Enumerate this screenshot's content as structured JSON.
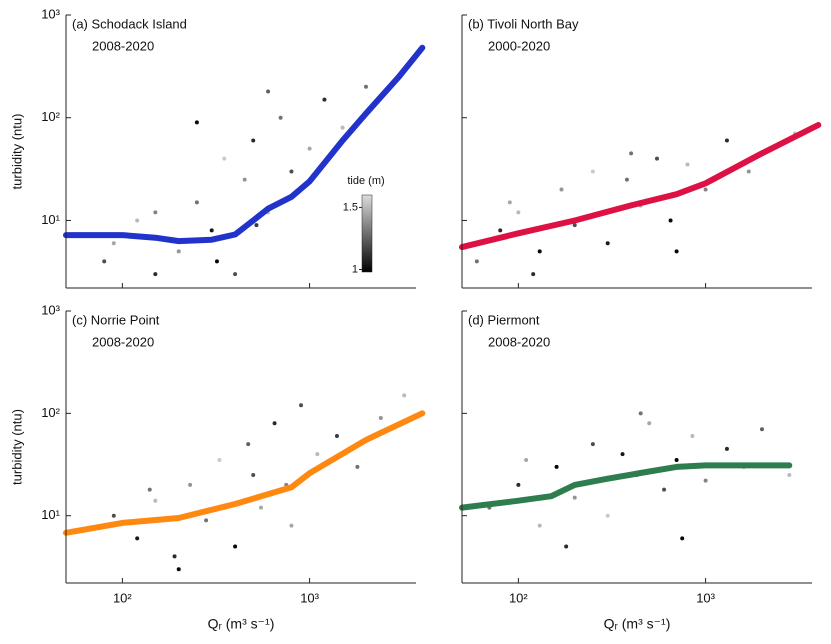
{
  "chart_data": [
    {
      "type": "scatter",
      "title": "(a) Schodack Island",
      "subtitle": "2008-2020",
      "ylabel": "turbidity (ntu)",
      "xlim": [
        50,
        3700
      ],
      "ylim": [
        2.2,
        1000
      ],
      "log_x": true,
      "log_y": true,
      "xticks": [
        100,
        1000
      ],
      "yticks": [
        {
          "value": 10,
          "label": "10¹"
        },
        {
          "value": 100,
          "label": "10²"
        },
        {
          "value": 1000,
          "label": "10³"
        }
      ],
      "points": {
        "x": [
          80,
          120,
          150,
          200,
          250,
          300,
          350,
          400,
          450,
          500,
          600,
          700,
          800,
          1000,
          1200,
          1500,
          2000,
          250,
          150,
          600,
          90,
          320,
          520,
          900
        ],
        "y": [
          4,
          10,
          3,
          5,
          15,
          8,
          40,
          3,
          25,
          60,
          12,
          100,
          30,
          50,
          150,
          80,
          200,
          90,
          12,
          180,
          6,
          4,
          9,
          20
        ],
        "tide": [
          1.2,
          1.5,
          1.1,
          1.4,
          1.3,
          1.05,
          1.55,
          1.2,
          1.4,
          1.1,
          1.5,
          1.3,
          1.2,
          1.45,
          1.1,
          1.5,
          1.3,
          1.0,
          1.35,
          1.25,
          1.45,
          1.0,
          1.15,
          1.4
        ]
      },
      "line": {
        "color": "#2233cc",
        "x": [
          50,
          100,
          150,
          200,
          300,
          400,
          500,
          600,
          800,
          1000,
          1500,
          2000,
          3000,
          4000
        ],
        "y": [
          7.2,
          7.2,
          6.8,
          6.3,
          6.5,
          7.3,
          10,
          13,
          17,
          24,
          60,
          110,
          250,
          480
        ]
      },
      "colorbar": {
        "label": "tide (m)",
        "lim": [
          0.98,
          1.6
        ],
        "ticks": [
          1,
          1.5
        ]
      }
    },
    {
      "type": "scatter",
      "title": "(b) Tivoli North Bay",
      "subtitle": "2000-2020",
      "xlim": [
        50,
        3700
      ],
      "ylim": [
        2.2,
        1000
      ],
      "log_x": true,
      "log_y": true,
      "xticks": [
        100,
        1000
      ],
      "yticks": [
        10,
        100,
        1000
      ],
      "points": {
        "x": [
          60,
          80,
          100,
          130,
          170,
          200,
          250,
          300,
          380,
          450,
          550,
          650,
          800,
          1000,
          1300,
          1700,
          2200,
          3000,
          120,
          400,
          700,
          90
        ],
        "y": [
          4,
          8,
          12,
          5,
          20,
          9,
          30,
          6,
          25,
          14,
          40,
          10,
          35,
          20,
          60,
          30,
          50,
          70,
          3,
          45,
          5,
          15
        ],
        "tide": [
          1.3,
          1.1,
          1.5,
          1.0,
          1.4,
          1.2,
          1.55,
          1.05,
          1.3,
          1.45,
          1.2,
          1.0,
          1.5,
          1.35,
          1.1,
          1.4,
          1.25,
          1.5,
          1.1,
          1.3,
          1.0,
          1.45
        ]
      },
      "line": {
        "color": "#dd1144",
        "x": [
          50,
          100,
          200,
          400,
          700,
          1000,
          2000,
          4000
        ],
        "y": [
          5.5,
          7.5,
          10,
          14,
          18,
          23,
          45,
          85
        ]
      }
    },
    {
      "type": "scatter",
      "title": "(c) Norrie Point",
      "subtitle": "2008-2020",
      "ylabel": "turbidity (ntu)",
      "xlabel": "Qᵣ (m³ s⁻¹)",
      "xlim": [
        50,
        3700
      ],
      "ylim": [
        2.2,
        1000
      ],
      "log_x": true,
      "log_y": true,
      "xticks": [
        {
          "value": 100,
          "label": "10²"
        },
        {
          "value": 1000,
          "label": "10³"
        }
      ],
      "yticks": [
        {
          "value": 10,
          "label": "10¹"
        },
        {
          "value": 100,
          "label": "10²"
        },
        {
          "value": 1000,
          "label": "10³"
        }
      ],
      "points": {
        "x": [
          90,
          120,
          150,
          190,
          230,
          280,
          330,
          400,
          470,
          550,
          650,
          750,
          900,
          1100,
          1400,
          1800,
          2400,
          3200,
          200,
          500,
          800,
          140
        ],
        "y": [
          10,
          6,
          14,
          4,
          20,
          9,
          35,
          5,
          50,
          12,
          80,
          20,
          120,
          40,
          60,
          30,
          90,
          150,
          3,
          25,
          8,
          18
        ],
        "tide": [
          1.2,
          1.05,
          1.5,
          1.1,
          1.4,
          1.3,
          1.55,
          1.0,
          1.25,
          1.45,
          1.1,
          1.35,
          1.2,
          1.5,
          1.15,
          1.3,
          1.4,
          1.5,
          1.0,
          1.2,
          1.45,
          1.3
        ]
      },
      "line": {
        "color": "#ff8811",
        "x": [
          50,
          100,
          200,
          400,
          800,
          1000,
          2000,
          4000
        ],
        "y": [
          6.8,
          8.5,
          9.5,
          13,
          19,
          26,
          55,
          100
        ]
      }
    },
    {
      "type": "scatter",
      "title": "(d) Piermont",
      "subtitle": "2008-2020",
      "xlabel": "Qᵣ (m³ s⁻¹)",
      "xlim": [
        50,
        3700
      ],
      "ylim": [
        2.2,
        1000
      ],
      "log_x": true,
      "log_y": true,
      "xticks": [
        {
          "value": 100,
          "label": "10²"
        },
        {
          "value": 1000,
          "label": "10³"
        }
      ],
      "yticks": [
        10,
        100,
        1000
      ],
      "points": {
        "x": [
          70,
          100,
          130,
          160,
          200,
          250,
          300,
          360,
          430,
          500,
          600,
          700,
          850,
          1000,
          1300,
          1600,
          2000,
          2800,
          180,
          450,
          750,
          110
        ],
        "y": [
          12,
          20,
          8,
          30,
          15,
          50,
          10,
          40,
          25,
          80,
          18,
          35,
          60,
          22,
          45,
          30,
          70,
          25,
          5,
          100,
          6,
          35
        ],
        "tide": [
          1.3,
          1.1,
          1.5,
          1.0,
          1.4,
          1.2,
          1.55,
          1.05,
          1.3,
          1.45,
          1.2,
          1.0,
          1.5,
          1.35,
          1.1,
          1.4,
          1.25,
          1.5,
          1.1,
          1.3,
          1.0,
          1.45
        ]
      },
      "line": {
        "color": "#2e7d4f",
        "x": [
          50,
          100,
          150,
          200,
          300,
          500,
          700,
          1000,
          2000,
          2800
        ],
        "y": [
          12,
          14,
          15.5,
          20,
          23,
          27,
          30,
          31,
          31,
          31
        ]
      }
    }
  ]
}
